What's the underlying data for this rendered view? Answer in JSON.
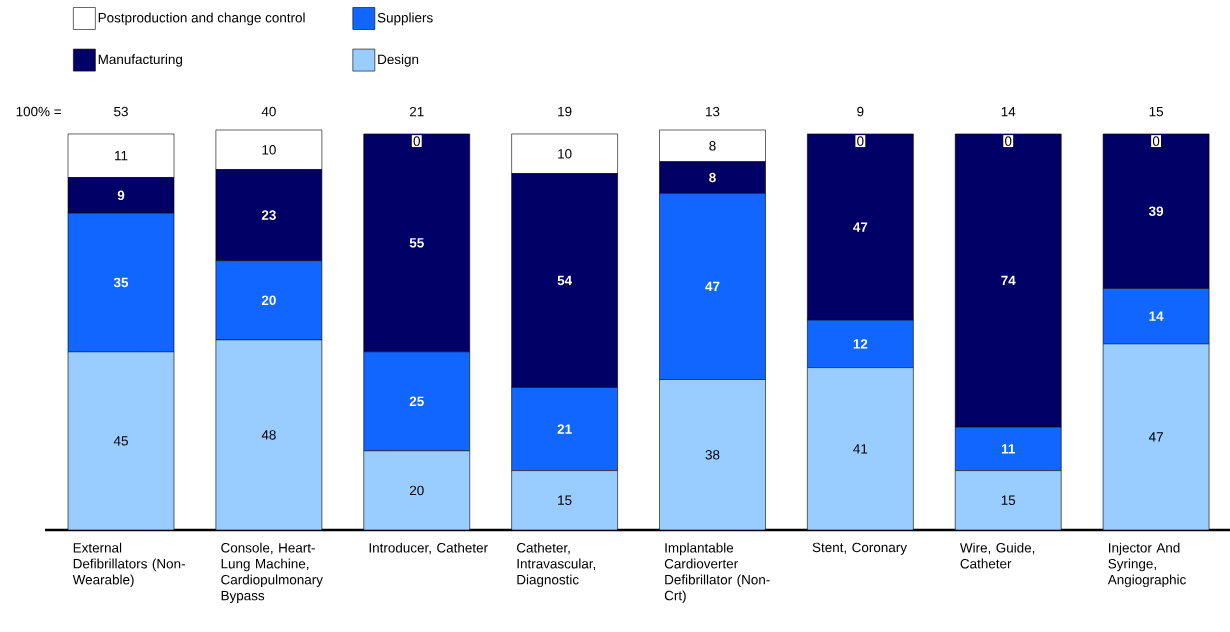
{
  "chart_data": {
    "type": "bar",
    "stacked": true,
    "data_labels": true,
    "legend": "top left",
    "tick_labels": "x",
    "categories": [
      "External Defibrillators (Non-Wearable)",
      "Console, Heart-Lung Machine, Cardiopulmonary Bypass",
      "Introducer, Catheter",
      "Catheter, Intravascular, Diagnostic",
      "Implantable Cardioverter Defibrillator (Non-Crt)",
      "Stent, Coronary",
      "Wire, Guide, Catheter",
      "Injector And Syringe, Angiographic"
    ],
    "series": [
      {
        "name": "Design",
        "color": "#99ccff",
        "values": [
          45,
          48,
          20,
          15,
          38,
          41,
          15,
          47
        ]
      },
      {
        "name": "Suppliers",
        "color": "#1166ff",
        "values": [
          35,
          20,
          25,
          21,
          47,
          12,
          11,
          14
        ]
      },
      {
        "name": "Manufacturing",
        "color": "#000066",
        "values": [
          9,
          23,
          55,
          54,
          8,
          47,
          74,
          39
        ]
      },
      {
        "name": "Postproduction and change control",
        "color": "#ffffff",
        "values": [
          11,
          10,
          0,
          10,
          8,
          0,
          0,
          0
        ]
      }
    ],
    "annotations": [
      "100% =",
      "53",
      "40",
      "21",
      "19",
      "13",
      "9",
      "14",
      "15"
    ]
  }
}
